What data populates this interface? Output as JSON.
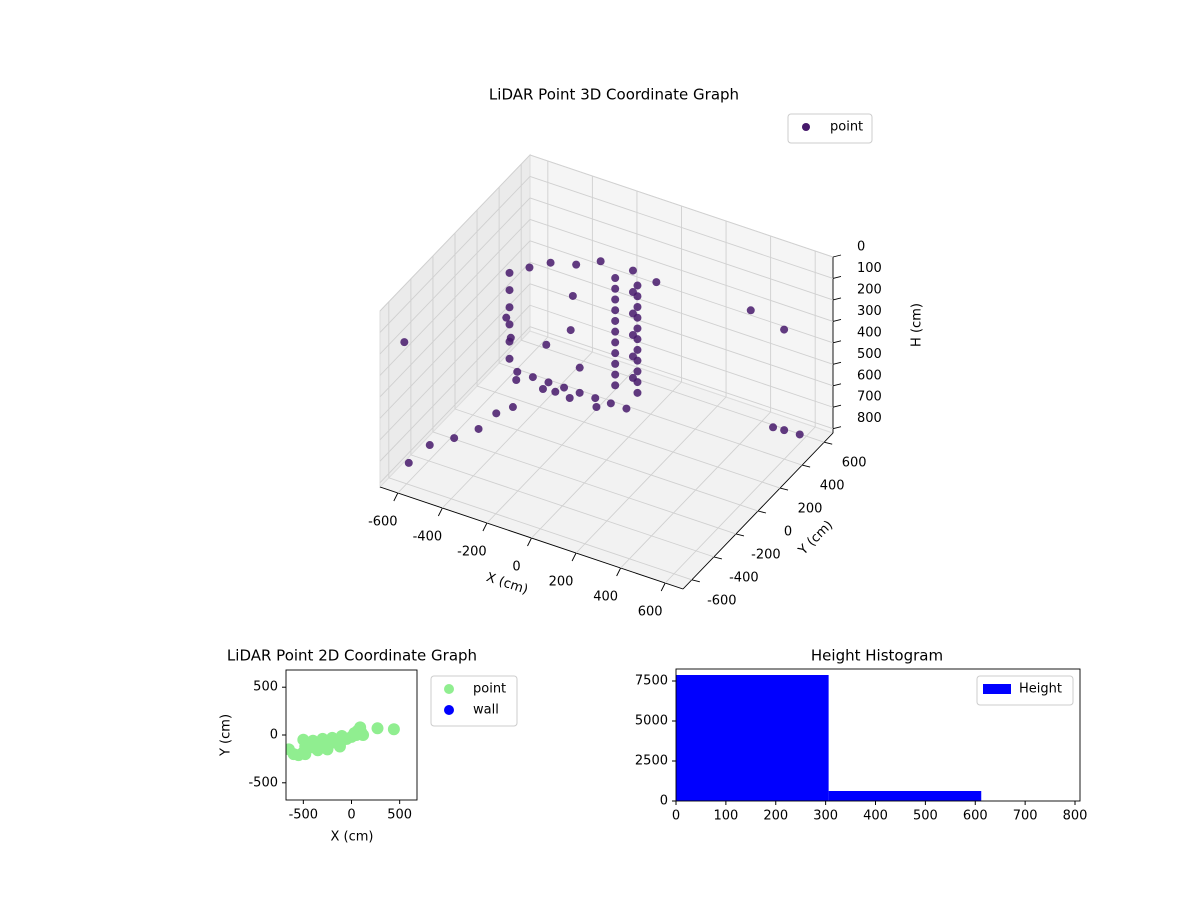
{
  "chart_data": [
    {
      "type": "scatter3d",
      "title": "LiDAR Point 3D Coordinate Graph",
      "xlabel": "X (cm)",
      "ylabel": "Y (cm)",
      "zlabel": "H (cm)",
      "xlim": [
        -680,
        680
      ],
      "ylim": [
        -680,
        680
      ],
      "zlim": [
        820,
        0
      ],
      "xticks": [
        -600,
        -400,
        -200,
        0,
        200,
        400,
        600
      ],
      "yticks": [
        -600,
        -400,
        -200,
        0,
        200,
        400,
        600
      ],
      "zticks": [
        0,
        100,
        200,
        300,
        400,
        500,
        600,
        700,
        800
      ],
      "grid": true,
      "legend": "upper right",
      "series": [
        {
          "name": "point",
          "color": "#46196b",
          "x": [
            -60,
            -60,
            -60,
            -60,
            -60,
            -60,
            -60,
            -60,
            -60,
            -60,
            -60,
            40,
            40,
            40,
            40,
            40,
            40,
            40,
            40,
            40,
            40,
            40,
            -10,
            -10,
            -10,
            -10,
            -10,
            -10,
            -150,
            -250,
            -350,
            -420,
            100,
            -450,
            -380,
            -310,
            -240,
            -170,
            -100,
            -30,
            40,
            -420,
            -300,
            -180,
            -60,
            -470,
            -470,
            -470,
            -470,
            -470,
            -470,
            -440,
            -380,
            -300,
            -230,
            -200,
            -140,
            -250,
            -650,
            -640,
            -620,
            -560,
            -500,
            -470,
            -420,
            400,
            520,
            500,
            540,
            600
          ],
          "y": [
            200,
            200,
            200,
            200,
            200,
            200,
            200,
            200,
            200,
            200,
            200,
            200,
            200,
            200,
            200,
            200,
            200,
            200,
            200,
            200,
            200,
            200,
            260,
            260,
            260,
            260,
            260,
            260,
            250,
            230,
            200,
            150,
            250,
            100,
            100,
            100,
            100,
            100,
            100,
            100,
            100,
            30,
            30,
            30,
            30,
            70,
            70,
            70,
            70,
            70,
            70,
            -20,
            -100,
            60,
            140,
            -60,
            40,
            200,
            -520,
            -500,
            -350,
            -250,
            -150,
            -50,
            0,
            500,
            560,
            500,
            520,
            540
          ],
          "z": [
            100,
            150,
            200,
            250,
            300,
            350,
            400,
            450,
            500,
            550,
            600,
            100,
            150,
            200,
            250,
            300,
            350,
            400,
            450,
            500,
            550,
            600,
            80,
            180,
            280,
            380,
            480,
            580,
            80,
            120,
            130,
            150,
            90,
            620,
            620,
            620,
            620,
            620,
            620,
            620,
            620,
            610,
            610,
            610,
            610,
            150,
            230,
            310,
            390,
            470,
            550,
            300,
            330,
            420,
            370,
            540,
            460,
            250,
            220,
            790,
            780,
            780,
            770,
            740,
            720,
            250,
            330,
            760,
            770,
            780
          ]
        }
      ]
    },
    {
      "type": "scatter",
      "title": "LiDAR Point 2D Coordinate Graph",
      "xlabel": "X (cm)",
      "ylabel": "Y (cm)",
      "xlim": [
        -680,
        680
      ],
      "ylim": [
        -680,
        680
      ],
      "xticks": [
        -500,
        0,
        500
      ],
      "yticks": [
        -500,
        0,
        500
      ],
      "legend": "outside right",
      "series": [
        {
          "name": "point",
          "color": "#90ee90",
          "x": [
            -650,
            -600,
            -550,
            -500,
            -480,
            -450,
            -400,
            -350,
            -300,
            -250,
            -200,
            -150,
            -100,
            -50,
            0,
            30,
            60,
            80,
            100,
            270,
            440,
            -500,
            -400,
            -300,
            -200,
            -100,
            -480,
            -350,
            -250,
            -120,
            50,
            90,
            120
          ],
          "y": [
            -150,
            -200,
            -210,
            -180,
            -120,
            -90,
            -130,
            -110,
            -100,
            -90,
            -80,
            -70,
            -60,
            -40,
            -20,
            20,
            40,
            60,
            30,
            70,
            60,
            -50,
            -60,
            -40,
            -30,
            -10,
            -200,
            -160,
            -150,
            -120,
            0,
            80,
            0
          ]
        },
        {
          "name": "wall",
          "color": "#0000ff",
          "x": [],
          "y": []
        }
      ]
    },
    {
      "type": "histogram",
      "title": "Height Histogram",
      "bins": [
        0,
        306,
        612
      ],
      "xlim": [
        0,
        810
      ],
      "ylim": [
        0,
        8250
      ],
      "xticks": [
        0,
        100,
        200,
        300,
        400,
        500,
        600,
        700,
        800
      ],
      "yticks": [
        0,
        2500,
        5000,
        7500
      ],
      "legend": "upper right",
      "series": [
        {
          "name": "Height",
          "color": "#0000ff",
          "values": [
            7875,
            625
          ]
        }
      ]
    }
  ]
}
